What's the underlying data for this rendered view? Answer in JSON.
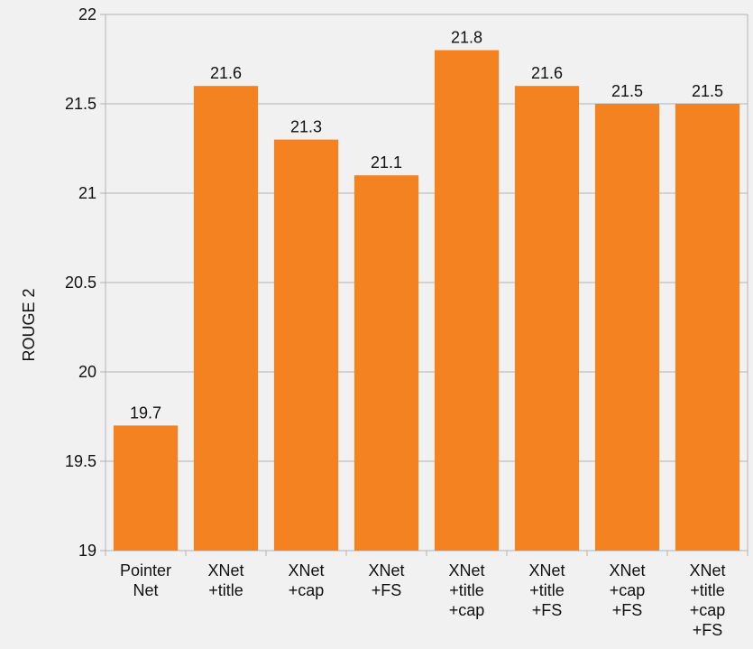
{
  "chart_data": {
    "type": "bar",
    "title": "",
    "xlabel": "",
    "ylabel": "ROUGE 2",
    "ylim": [
      19,
      22
    ],
    "yticks": [
      19,
      19.5,
      20,
      20.5,
      21,
      21.5,
      22
    ],
    "ytick_labels": [
      "19",
      "19.5",
      "20",
      "20.5",
      "21",
      "21.5",
      "22"
    ],
    "grid": true,
    "legend": "none",
    "bar_color": "#f58220",
    "categories": [
      [
        "Pointer",
        "Net"
      ],
      [
        "XNet",
        "+title"
      ],
      [
        "XNet",
        "+cap"
      ],
      [
        "XNet",
        "+FS"
      ],
      [
        "XNet",
        "+title",
        "+cap"
      ],
      [
        "XNet",
        "+title",
        "+FS"
      ],
      [
        "XNet",
        "+cap",
        "+FS"
      ],
      [
        "XNet",
        "+title",
        "+cap",
        "+FS"
      ]
    ],
    "values": [
      19.7,
      21.6,
      21.3,
      21.1,
      21.8,
      21.6,
      21.5,
      21.5
    ],
    "value_labels": [
      "19.7",
      "21.6",
      "21.3",
      "21.1",
      "21.8",
      "21.6",
      "21.5",
      "21.5"
    ]
  }
}
